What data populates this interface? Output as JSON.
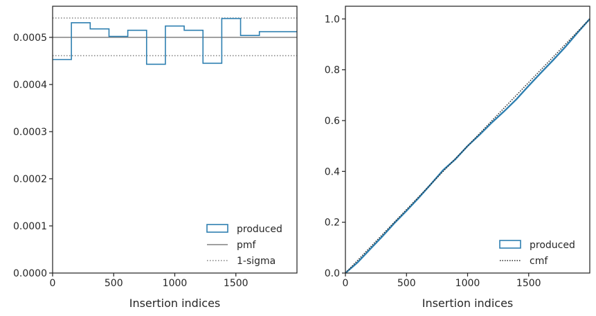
{
  "chart_data": [
    {
      "type": "histogram-step",
      "xlabel": "Insertion indices",
      "ylabel": "",
      "xlim": [
        0,
        2000
      ],
      "ylim": [
        0,
        0.000566
      ],
      "xticks": [
        0,
        500,
        1000,
        1500
      ],
      "xtick_labels": [
        "0",
        "500",
        "1000",
        "1500"
      ],
      "yticks": [
        0,
        0.0001,
        0.0002,
        0.0003,
        0.0004,
        0.0005
      ],
      "ytick_labels": [
        "0.0000",
        "0.0001",
        "0.0002",
        "0.0003",
        "0.0004",
        "0.0005"
      ],
      "bin_edges": [
        0,
        153.8,
        307.7,
        461.5,
        615.4,
        769.2,
        923.1,
        1076.9,
        1230.8,
        1384.6,
        1538.5,
        1692.3,
        1846.2,
        2000
      ],
      "series": [
        {
          "name": "produced",
          "style": "step",
          "values": [
            0.000453,
            0.000531,
            0.000518,
            0.000502,
            0.000515,
            0.000443,
            0.000524,
            0.000515,
            0.000445,
            0.00054,
            0.000504,
            0.000512,
            0.000512
          ]
        }
      ],
      "reference_lines": [
        {
          "name": "pmf",
          "style": "solid",
          "y": 0.0005
        },
        {
          "name": "1-sigma",
          "style": "dotted",
          "y": [
            0.000461,
            0.000541
          ]
        }
      ],
      "legend": [
        "produced",
        "pmf",
        "1-sigma"
      ],
      "legend_position": "lower-right",
      "grid": false
    },
    {
      "type": "line",
      "xlabel": "Insertion indices",
      "ylabel": "",
      "xlim": [
        0,
        2000
      ],
      "ylim": [
        0,
        1.05
      ],
      "xticks": [
        0,
        500,
        1000,
        1500
      ],
      "xtick_labels": [
        "0",
        "500",
        "1000",
        "1500"
      ],
      "yticks": [
        0,
        0.2,
        0.4,
        0.6,
        0.8,
        1.0
      ],
      "ytick_labels": [
        "0.0",
        "0.2",
        "0.4",
        "0.6",
        "0.8",
        "1.0"
      ],
      "series": [
        {
          "name": "produced",
          "style": "step",
          "x": [
            0,
            100,
            200,
            300,
            400,
            500,
            600,
            700,
            800,
            900,
            1000,
            1100,
            1200,
            1300,
            1400,
            1500,
            1600,
            1700,
            1800,
            1900,
            2000
          ],
          "y": [
            0.0,
            0.042,
            0.093,
            0.143,
            0.196,
            0.245,
            0.296,
            0.35,
            0.405,
            0.448,
            0.5,
            0.545,
            0.593,
            0.637,
            0.684,
            0.737,
            0.788,
            0.838,
            0.89,
            0.946,
            1.0
          ]
        },
        {
          "name": "cmf",
          "style": "dotted",
          "x": [
            0,
            2000
          ],
          "y": [
            0.0,
            1.0
          ]
        }
      ],
      "legend": [
        "produced",
        "cmf"
      ],
      "legend_position": "lower-right",
      "grid": false
    }
  ],
  "colors": {
    "produced": "#2e7fb0",
    "pmf": "#808080",
    "sigma": "#808080",
    "cmf": "#262626",
    "spine": "#262626",
    "text": "#262626"
  }
}
